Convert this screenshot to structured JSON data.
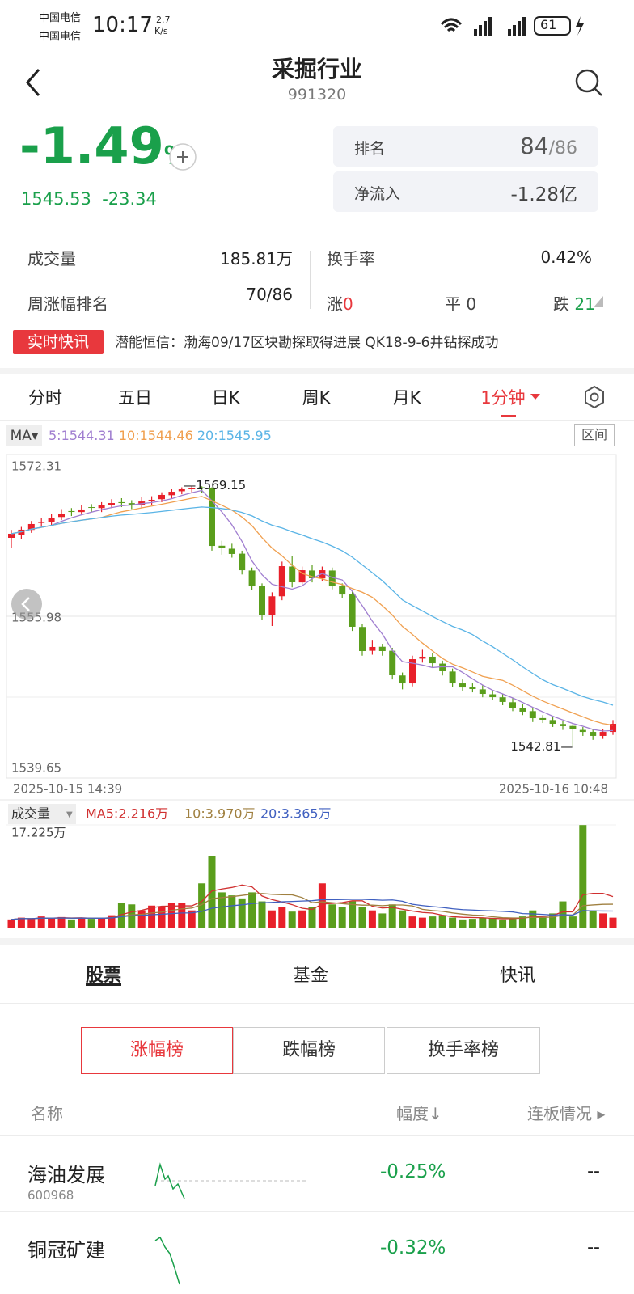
{
  "status": {
    "carrier1": "中国电信",
    "carrier2": "中国电信",
    "time": "10:17",
    "speed": "2.7",
    "speed_unit": "K/s",
    "battery": "61"
  },
  "header": {
    "title": "采掘行业",
    "code": "991320"
  },
  "quote": {
    "change_pct": "-1.49",
    "pct_sign": "%",
    "price": "1545.53",
    "change": "-23.34"
  },
  "rank": {
    "label": "排名",
    "value": "84",
    "total": "/86"
  },
  "inflow": {
    "label": "净流入",
    "value": "-1.28亿"
  },
  "stats": {
    "volume_label": "成交量",
    "volume": "185.81万",
    "turnover_label": "换手率",
    "turnover": "0.42%",
    "week_label": "周涨幅排名",
    "week": "70/86",
    "up_label": "涨",
    "up": "0",
    "flat_label": "平",
    "flat": "0",
    "down_label": "跌",
    "down": "21"
  },
  "news": {
    "tag": "实时快讯",
    "text": "潜能恒信：渤海09/17区块勘探取得进展 QK18-9-6井钻探成功"
  },
  "tabs": [
    "分时",
    "五日",
    "日K",
    "周K",
    "月K",
    "1分钟"
  ],
  "ma": {
    "label": "MA",
    "ma5": "5:1544.31",
    "ma10": "10:1544.46",
    "ma20": "20:1545.95",
    "range_button": "区间"
  },
  "chart_data": {
    "type": "candlestick",
    "up_color": "#e8202a",
    "down_color": "#5a9e1c",
    "ma_colors": [
      "#a07ed0",
      "#f0a050",
      "#5ab4e6"
    ],
    "ylim": [
      1539.65,
      1572.31
    ],
    "yticks": [
      1572.31,
      1555.98,
      1539.65
    ],
    "grid": true,
    "max_label": 1569.15,
    "min_label": 1542.81,
    "x_start": "2025-10-15  14:39",
    "x_end": "2025-10-16  10:48",
    "candles": [
      [
        1563.9,
        1564.31,
        1564.7,
        1562.9
      ],
      [
        1564.2,
        1564.72,
        1565.0,
        1563.8
      ],
      [
        1564.7,
        1565.29,
        1565.6,
        1564.4
      ],
      [
        1565.4,
        1565.53,
        1565.9,
        1565.0
      ],
      [
        1565.5,
        1565.94,
        1566.3,
        1565.2
      ],
      [
        1566.0,
        1566.35,
        1566.8,
        1565.7
      ],
      [
        1566.6,
        1566.51,
        1566.9,
        1566.1
      ],
      [
        1566.5,
        1566.76,
        1567.2,
        1566.2
      ],
      [
        1567.0,
        1566.92,
        1567.3,
        1566.5
      ],
      [
        1566.9,
        1567.17,
        1567.5,
        1566.5
      ],
      [
        1567.2,
        1567.41,
        1567.8,
        1566.9
      ],
      [
        1567.5,
        1567.41,
        1567.9,
        1567.0
      ],
      [
        1567.4,
        1567.17,
        1567.7,
        1566.8
      ],
      [
        1567.2,
        1567.57,
        1568.0,
        1566.9
      ],
      [
        1567.6,
        1567.74,
        1568.1,
        1567.2
      ],
      [
        1567.8,
        1568.23,
        1568.5,
        1567.5
      ],
      [
        1568.2,
        1568.55,
        1568.8,
        1567.9
      ],
      [
        1568.6,
        1568.8,
        1569.0,
        1568.3
      ],
      [
        1568.8,
        1568.96,
        1569.15,
        1568.5
      ],
      [
        1569.0,
        1568.88,
        1569.1,
        1568.4
      ],
      [
        1568.9,
        1563.08,
        1569.0,
        1562.6
      ],
      [
        1563.1,
        1562.84,
        1563.6,
        1562.2
      ],
      [
        1562.8,
        1562.27,
        1563.3,
        1561.9
      ],
      [
        1562.3,
        1560.63,
        1562.6,
        1560.2
      ],
      [
        1560.6,
        1559.0,
        1560.9,
        1558.6
      ],
      [
        1559.0,
        1556.14,
        1559.3,
        1555.6
      ],
      [
        1556.1,
        1558.0,
        1558.4,
        1555.0
      ],
      [
        1558.0,
        1561.04,
        1561.5,
        1557.6
      ],
      [
        1561.0,
        1559.41,
        1562.1,
        1558.9
      ],
      [
        1559.4,
        1560.63,
        1561.0,
        1559.0
      ],
      [
        1560.6,
        1559.82,
        1561.2,
        1559.4
      ],
      [
        1559.8,
        1560.63,
        1561.0,
        1559.5
      ],
      [
        1560.6,
        1559.0,
        1560.9,
        1558.7
      ],
      [
        1559.0,
        1558.18,
        1559.3,
        1557.8
      ],
      [
        1558.2,
        1554.92,
        1558.5,
        1554.5
      ],
      [
        1554.9,
        1552.47,
        1555.2,
        1552.0
      ],
      [
        1552.5,
        1552.88,
        1553.6,
        1552.1
      ],
      [
        1552.9,
        1552.47,
        1553.2,
        1552.0
      ],
      [
        1552.5,
        1550.02,
        1552.8,
        1549.6
      ],
      [
        1550.0,
        1549.2,
        1550.3,
        1548.6
      ],
      [
        1549.2,
        1551.65,
        1552.0,
        1548.9
      ],
      [
        1551.7,
        1551.9,
        1552.6,
        1551.3
      ],
      [
        1551.9,
        1551.24,
        1552.3,
        1550.8
      ],
      [
        1551.2,
        1550.43,
        1551.5,
        1550.0
      ],
      [
        1550.4,
        1549.2,
        1550.7,
        1548.8
      ],
      [
        1549.2,
        1548.79,
        1549.6,
        1548.4
      ],
      [
        1548.8,
        1548.63,
        1549.2,
        1548.3
      ],
      [
        1548.6,
        1548.14,
        1549.0,
        1547.8
      ],
      [
        1548.1,
        1547.81,
        1548.5,
        1547.5
      ],
      [
        1547.8,
        1547.33,
        1548.1,
        1547.0
      ],
      [
        1547.3,
        1546.75,
        1547.7,
        1546.4
      ],
      [
        1546.7,
        1546.35,
        1547.1,
        1546.0
      ],
      [
        1546.4,
        1545.69,
        1546.7,
        1545.3
      ],
      [
        1545.7,
        1545.53,
        1546.0,
        1545.2
      ],
      [
        1545.5,
        1545.12,
        1545.8,
        1544.8
      ],
      [
        1545.1,
        1544.88,
        1545.4,
        1544.5
      ],
      [
        1544.9,
        1544.55,
        1545.1,
        1542.81
      ],
      [
        1544.5,
        1544.3,
        1544.8,
        1543.9
      ],
      [
        1544.3,
        1543.9,
        1544.6,
        1543.5
      ],
      [
        1543.9,
        1544.3,
        1544.6,
        1543.6
      ],
      [
        1544.3,
        1545.12,
        1545.5,
        1544.0
      ]
    ],
    "volume": {
      "label": "成交量",
      "ma5": "MA5:2.216万",
      "ma10": "10:3.970万",
      "ma20": "20:3.365万",
      "ma_colors": [
        "#d03030",
        "#a08040",
        "#4060c0"
      ],
      "ylim": [
        0,
        17.225
      ],
      "yticks": [
        {
          "value": 17.225,
          "label": "17.225万"
        }
      ],
      "values": [
        1.5,
        1.8,
        1.6,
        2.0,
        1.7,
        1.9,
        1.5,
        1.8,
        1.6,
        1.7,
        2.2,
        4.2,
        4.0,
        3.0,
        3.8,
        3.5,
        4.3,
        4.2,
        3.0,
        7.5,
        12.1,
        6.0,
        5.5,
        5.0,
        6.0,
        4.5,
        3.0,
        3.5,
        2.8,
        3.0,
        3.5,
        7.5,
        4.0,
        3.5,
        4.5,
        3.5,
        3.0,
        2.5,
        4.0,
        3.0,
        2.0,
        1.8,
        2.0,
        2.2,
        1.8,
        1.5,
        1.6,
        1.8,
        1.7,
        1.5,
        1.6,
        2.0,
        3.0,
        1.8,
        2.5,
        4.5,
        2.0,
        17.2,
        3.0,
        2.5,
        1.8
      ]
    }
  },
  "bottom_tabs": [
    "股票",
    "基金",
    "快讯"
  ],
  "segments": [
    "涨幅榜",
    "跌幅榜",
    "换手率榜"
  ],
  "list": {
    "col_name": "名称",
    "col_change": "幅度",
    "col_board": "连板情况",
    "rows": [
      {
        "name": "海油发展",
        "code": "600968",
        "change": "-0.25%",
        "board": "--"
      },
      {
        "name": "铜冠矿建",
        "change": "-0.32%",
        "board": "--"
      }
    ]
  }
}
